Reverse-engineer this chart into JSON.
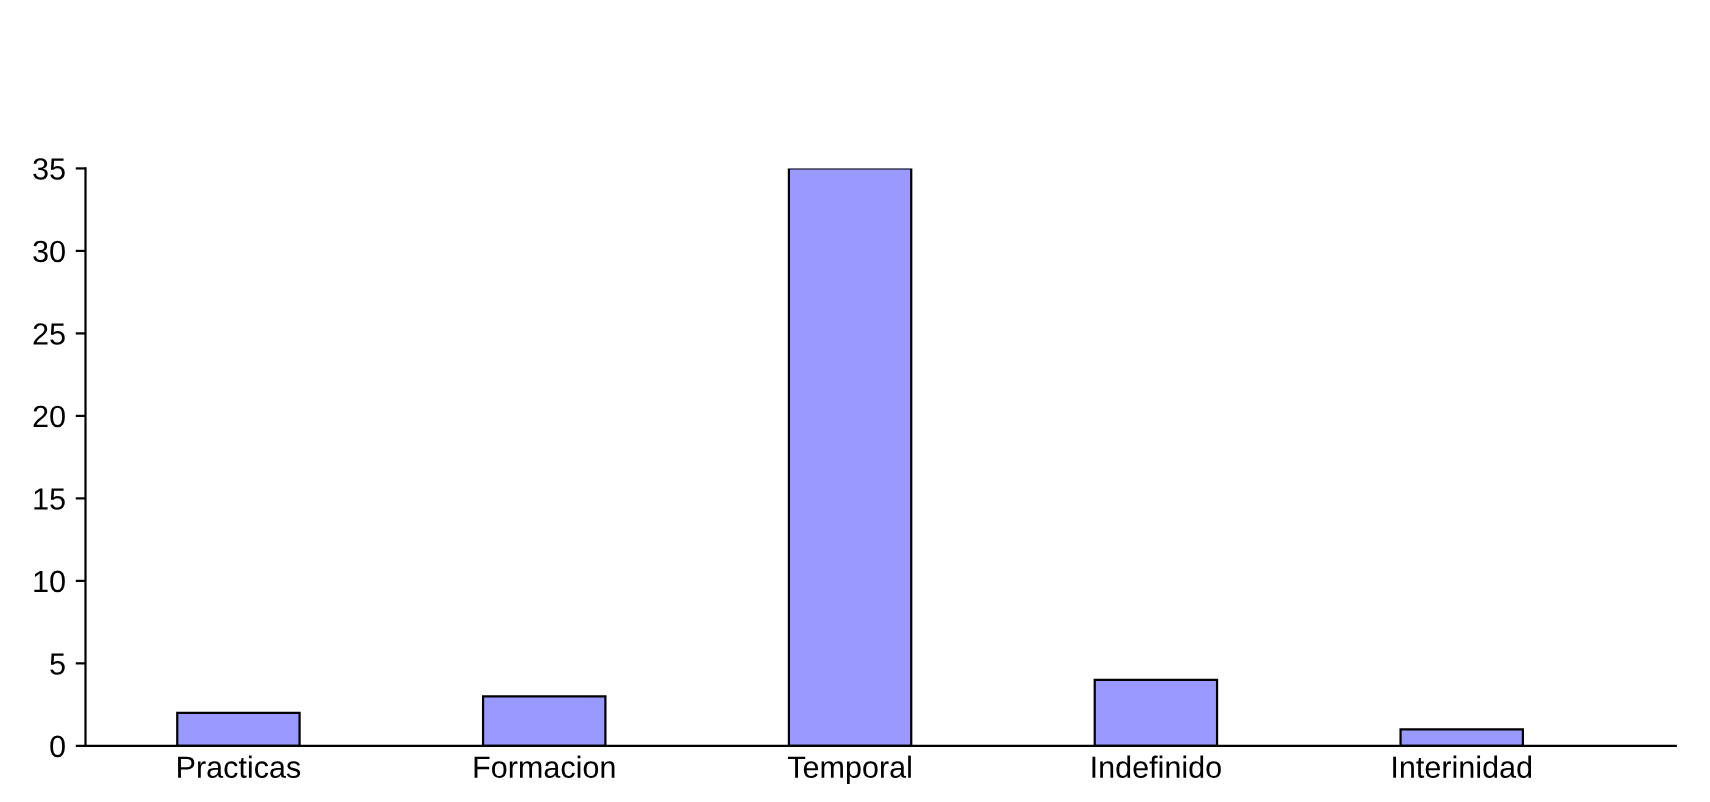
{
  "chart_data": {
    "type": "bar",
    "categories": [
      "Practicas",
      "Formacion",
      "Temporal",
      "Indefinido",
      "Interinidad"
    ],
    "values": [
      2,
      3,
      35,
      4,
      1
    ],
    "color": "#9999ff",
    "ylim": [
      0,
      35
    ],
    "yticks": [
      0,
      5,
      10,
      15,
      20,
      25,
      30,
      35
    ],
    "grid": false
  }
}
